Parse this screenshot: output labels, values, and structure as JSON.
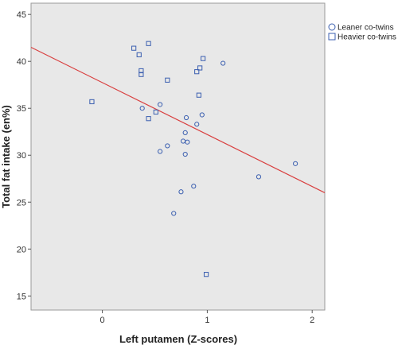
{
  "chart_data": {
    "type": "scatter",
    "title": "",
    "xlabel": "Left putamen (Z-scores)",
    "ylabel": "Total fat intake (en%)",
    "xlim": [
      -0.68,
      2.12
    ],
    "ylim": [
      13.5,
      46.2
    ],
    "xticks": [
      0,
      1,
      2
    ],
    "xtick_labels": [
      "0",
      "1",
      "2"
    ],
    "yticks": [
      15,
      20,
      25,
      30,
      35,
      40,
      45
    ],
    "ytick_labels": [
      "15",
      "20",
      "25",
      "30",
      "35",
      "40",
      "45"
    ],
    "grid": false,
    "legend_position": "top-right",
    "plot_background": "#e8e8e8",
    "series": [
      {
        "name": "Leaner co-twins",
        "marker": "circle",
        "color": "#3b5fb0",
        "points": [
          [
            0.38,
            35.0
          ],
          [
            0.55,
            35.4
          ],
          [
            0.55,
            30.4
          ],
          [
            0.62,
            31.0
          ],
          [
            0.79,
            32.4
          ],
          [
            0.8,
            34.0
          ],
          [
            0.77,
            31.5
          ],
          [
            0.81,
            31.4
          ],
          [
            0.79,
            30.1
          ],
          [
            0.9,
            33.3
          ],
          [
            0.95,
            34.3
          ],
          [
            0.75,
            26.1
          ],
          [
            0.68,
            23.8
          ],
          [
            0.87,
            26.7
          ],
          [
            1.15,
            39.8
          ],
          [
            1.49,
            27.7
          ],
          [
            1.84,
            29.1
          ]
        ]
      },
      {
        "name": "Heavier co-twins",
        "marker": "square",
        "color": "#3b5fb0",
        "points": [
          [
            -0.1,
            35.7
          ],
          [
            0.3,
            41.4
          ],
          [
            0.35,
            40.7
          ],
          [
            0.44,
            41.9
          ],
          [
            0.37,
            39.0
          ],
          [
            0.37,
            38.6
          ],
          [
            0.62,
            38.0
          ],
          [
            0.9,
            38.9
          ],
          [
            0.93,
            39.3
          ],
          [
            0.96,
            40.3
          ],
          [
            0.92,
            36.4
          ],
          [
            0.51,
            34.6
          ],
          [
            0.44,
            33.9
          ],
          [
            0.99,
            17.3
          ]
        ]
      }
    ],
    "fit_line": {
      "color": "#d94040",
      "x": [
        -0.68,
        2.12
      ],
      "y": [
        41.5,
        26.0
      ]
    }
  }
}
